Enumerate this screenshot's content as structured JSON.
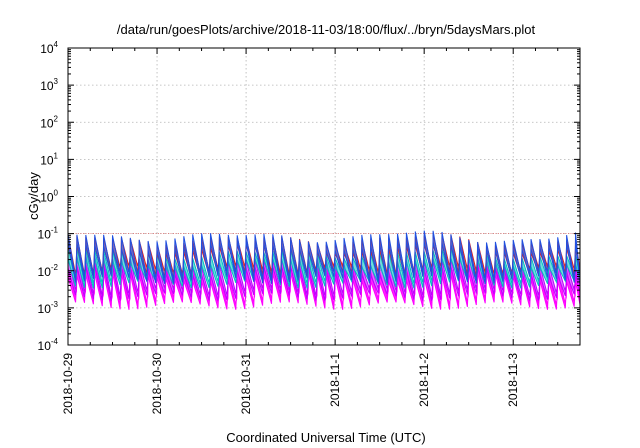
{
  "chart_data": {
    "type": "area",
    "title": "/data/run/goesPlots/archive/2018-11-03/18:00/flux/../bryn/5daysMars.plot",
    "xlabel": "Coordinated Universal Time (UTC)",
    "ylabel": "cGy/day",
    "yscale": "log",
    "ylim": [
      0.0001,
      10000
    ],
    "x_range": [
      "2018-10-29 00:00",
      "2018-11-03 18:00"
    ],
    "y_ticks": [
      {
        "base": "10",
        "exp": "-4"
      },
      {
        "base": "10",
        "exp": "-3"
      },
      {
        "base": "10",
        "exp": "-2"
      },
      {
        "base": "10",
        "exp": "-1"
      },
      {
        "base": "10",
        "exp": "0"
      },
      {
        "base": "10",
        "exp": "1"
      },
      {
        "base": "10",
        "exp": "2"
      },
      {
        "base": "10",
        "exp": "3"
      },
      {
        "base": "10",
        "exp": "4"
      }
    ],
    "x_ticks": [
      "2018-10-29",
      "2018-10-30",
      "2018-10-31",
      "2018-11-1",
      "2018-11-2",
      "2018-11-3"
    ],
    "grid": true,
    "legend": "none",
    "reference_line": {
      "y": 0.1,
      "color": "#e06060"
    },
    "cycle_hours": 2.4,
    "series": [
      {
        "color": "#ff00ff",
        "peak": 0.012,
        "trough": 0.0016
      },
      {
        "color": "#c000ff",
        "peak": 0.018,
        "trough": 0.0028
      },
      {
        "color": "#00c0c0",
        "peak": 0.03,
        "trough": 0.006
      },
      {
        "color": "#e02020",
        "peak": 0.07,
        "trough": 0.011
      },
      {
        "color": "#2050e0",
        "peak": 0.085,
        "trough": 0.008
      }
    ]
  }
}
